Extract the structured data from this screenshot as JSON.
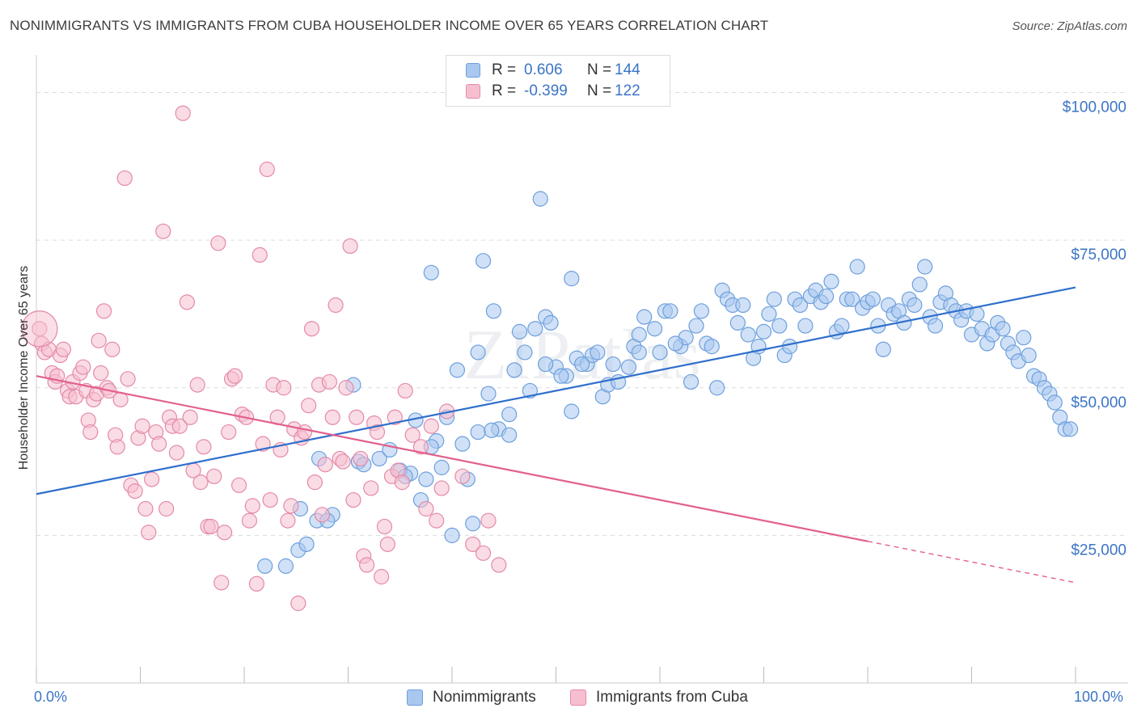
{
  "title": "NONIMMIGRANTS VS IMMIGRANTS FROM CUBA HOUSEHOLDER INCOME OVER 65 YEARS CORRELATION CHART",
  "source": "Source: ZipAtlas.com",
  "watermark": "ZIPatlas",
  "legend_top": [
    {
      "r_label": "R =",
      "r_value": "0.606",
      "n_label": "N =",
      "n_value": "144",
      "color": "#a9c8f0",
      "border": "#6d9fdc"
    },
    {
      "r_label": "R =",
      "r_value": "-0.399",
      "n_label": "N =",
      "n_value": "122",
      "color": "#f6bfd0",
      "border": "#e48aa8"
    }
  ],
  "chart_data": {
    "type": "scatter",
    "xlabel": "",
    "ylabel": "Householder Income Over 65 years",
    "xlim": [
      0,
      100
    ],
    "ylim": [
      0,
      105000
    ],
    "x_tick_labels": [
      "0.0%",
      "100.0%"
    ],
    "y_ticks": [
      25000,
      50000,
      75000,
      100000
    ],
    "y_tick_labels": [
      "$25,000",
      "$50,000",
      "$75,000",
      "$100,000"
    ],
    "grid": "horizontal dashed",
    "legend": "bottom",
    "series": [
      {
        "name": "Nonimmigrants",
        "color": "#6d9fdc",
        "fill": "#a9c8f0",
        "trend": {
          "x": [
            0,
            100
          ],
          "y": [
            32000,
            67000
          ],
          "color": "#2f6fcc"
        },
        "points": [
          [
            22.0,
            19800
          ],
          [
            24.0,
            19800
          ],
          [
            25.2,
            22500
          ],
          [
            26.0,
            23500
          ],
          [
            25.4,
            29500
          ],
          [
            27.0,
            27500
          ],
          [
            28.5,
            28500
          ],
          [
            28.0,
            27500
          ],
          [
            27.2,
            38000
          ],
          [
            30.5,
            50500
          ],
          [
            31.0,
            37500
          ],
          [
            31.5,
            37000
          ],
          [
            33.0,
            38000
          ],
          [
            34.0,
            39500
          ],
          [
            35.0,
            36000
          ],
          [
            36.0,
            35500
          ],
          [
            35.5,
            35000
          ],
          [
            37.0,
            31000
          ],
          [
            37.5,
            34500
          ],
          [
            36.5,
            44500
          ],
          [
            38.5,
            41000
          ],
          [
            39.5,
            45000
          ],
          [
            39.0,
            36500
          ],
          [
            38.0,
            40000
          ],
          [
            40.0,
            25000
          ],
          [
            42.0,
            27000
          ],
          [
            41.5,
            34500
          ],
          [
            42.5,
            42500
          ],
          [
            43.5,
            49000
          ],
          [
            44.5,
            43000
          ],
          [
            45.5,
            42000
          ],
          [
            46.0,
            53000
          ],
          [
            47.0,
            56000
          ],
          [
            48.0,
            60000
          ],
          [
            49.0,
            62000
          ],
          [
            49.5,
            61000
          ],
          [
            50.0,
            53500
          ],
          [
            51.0,
            52000
          ],
          [
            51.5,
            46000
          ],
          [
            52.0,
            55000
          ],
          [
            53.0,
            54000
          ],
          [
            53.5,
            55500
          ],
          [
            54.0,
            56000
          ],
          [
            54.5,
            48500
          ],
          [
            55.0,
            50500
          ],
          [
            55.5,
            54000
          ],
          [
            56.0,
            51000
          ],
          [
            57.0,
            53500
          ],
          [
            57.5,
            57000
          ],
          [
            58.0,
            59000
          ],
          [
            58.5,
            62000
          ],
          [
            59.5,
            60000
          ],
          [
            60.0,
            56000
          ],
          [
            60.5,
            63000
          ],
          [
            61.0,
            63000
          ],
          [
            62.0,
            57000
          ],
          [
            62.5,
            58500
          ],
          [
            63.0,
            51000
          ],
          [
            63.5,
            60500
          ],
          [
            64.0,
            63000
          ],
          [
            64.5,
            57500
          ],
          [
            65.0,
            57000
          ],
          [
            65.5,
            50000
          ],
          [
            66.0,
            66500
          ],
          [
            66.5,
            65000
          ],
          [
            67.0,
            64000
          ],
          [
            67.5,
            61000
          ],
          [
            68.0,
            64000
          ],
          [
            68.5,
            59000
          ],
          [
            69.0,
            55000
          ],
          [
            69.5,
            57000
          ],
          [
            70.0,
            59500
          ],
          [
            70.5,
            62500
          ],
          [
            71.0,
            65000
          ],
          [
            71.5,
            60500
          ],
          [
            72.0,
            55500
          ],
          [
            72.5,
            57000
          ],
          [
            73.0,
            65000
          ],
          [
            73.5,
            64000
          ],
          [
            74.0,
            60500
          ],
          [
            74.5,
            65500
          ],
          [
            75.0,
            66500
          ],
          [
            75.5,
            64500
          ],
          [
            76.0,
            65500
          ],
          [
            76.5,
            68000
          ],
          [
            77.0,
            59500
          ],
          [
            77.5,
            60500
          ],
          [
            78.0,
            65000
          ],
          [
            78.5,
            65000
          ],
          [
            79.0,
            70500
          ],
          [
            79.5,
            63500
          ],
          [
            80.0,
            64500
          ],
          [
            80.5,
            65000
          ],
          [
            81.0,
            60500
          ],
          [
            81.5,
            56500
          ],
          [
            82.0,
            64000
          ],
          [
            82.5,
            62500
          ],
          [
            83.0,
            63000
          ],
          [
            83.5,
            61000
          ],
          [
            84.0,
            65000
          ],
          [
            84.5,
            64000
          ],
          [
            85.0,
            67500
          ],
          [
            85.5,
            70500
          ],
          [
            86.0,
            62000
          ],
          [
            86.5,
            60500
          ],
          [
            87.0,
            64500
          ],
          [
            87.5,
            66000
          ],
          [
            88.0,
            64000
          ],
          [
            88.5,
            63000
          ],
          [
            89.0,
            61500
          ],
          [
            89.5,
            63000
          ],
          [
            90.0,
            59000
          ],
          [
            90.5,
            62500
          ],
          [
            91.0,
            60000
          ],
          [
            91.5,
            57500
          ],
          [
            92.0,
            59000
          ],
          [
            92.5,
            61000
          ],
          [
            93.0,
            60000
          ],
          [
            93.5,
            57500
          ],
          [
            94.0,
            56000
          ],
          [
            94.5,
            54500
          ],
          [
            95.0,
            58500
          ],
          [
            95.5,
            55500
          ],
          [
            96.0,
            52000
          ],
          [
            96.5,
            51500
          ],
          [
            97.0,
            50000
          ],
          [
            97.5,
            49000
          ],
          [
            98.0,
            47500
          ],
          [
            98.5,
            45000
          ],
          [
            99.0,
            43000
          ],
          [
            99.5,
            43000
          ],
          [
            42.5,
            56000
          ],
          [
            43.8,
            42800
          ],
          [
            46.5,
            59500
          ],
          [
            47.5,
            49500
          ],
          [
            48.5,
            82000
          ],
          [
            43.0,
            71500
          ],
          [
            38.0,
            69500
          ],
          [
            51.5,
            68500
          ],
          [
            44.0,
            63000
          ],
          [
            40.5,
            53000
          ],
          [
            41.0,
            40500
          ],
          [
            45.5,
            45500
          ],
          [
            52.5,
            54000
          ],
          [
            58.0,
            56000
          ],
          [
            61.5,
            57500
          ],
          [
            50.5,
            52000
          ],
          [
            49.0,
            54000
          ]
        ]
      },
      {
        "name": "Immigrants from Cuba",
        "color": "#e48aa8",
        "fill": "#f6bfd0",
        "trend": {
          "x": [
            0,
            80
          ],
          "y": [
            52000,
            24000
          ],
          "x_dash_end": 100,
          "y_dash_end": 17000,
          "color": "#e2608c"
        },
        "points": [
          [
            0.3,
            60000
          ],
          [
            0.5,
            57500
          ],
          [
            0.8,
            56000
          ],
          [
            1.2,
            56500
          ],
          [
            1.5,
            52500
          ],
          [
            1.8,
            51000
          ],
          [
            2.0,
            52000
          ],
          [
            2.3,
            55500
          ],
          [
            2.6,
            56500
          ],
          [
            3.0,
            49500
          ],
          [
            3.2,
            48500
          ],
          [
            3.5,
            51000
          ],
          [
            3.8,
            48500
          ],
          [
            4.2,
            52500
          ],
          [
            4.5,
            53500
          ],
          [
            4.8,
            49500
          ],
          [
            5.0,
            44500
          ],
          [
            5.2,
            42500
          ],
          [
            5.5,
            48000
          ],
          [
            5.8,
            49000
          ],
          [
            6.0,
            58000
          ],
          [
            6.2,
            52500
          ],
          [
            6.5,
            63000
          ],
          [
            6.8,
            50000
          ],
          [
            7.0,
            49500
          ],
          [
            7.3,
            56500
          ],
          [
            7.6,
            42000
          ],
          [
            7.8,
            40000
          ],
          [
            8.1,
            48000
          ],
          [
            8.5,
            85500
          ],
          [
            8.8,
            51500
          ],
          [
            9.1,
            33500
          ],
          [
            9.5,
            32500
          ],
          [
            9.8,
            41500
          ],
          [
            10.2,
            43500
          ],
          [
            10.5,
            29500
          ],
          [
            10.8,
            25500
          ],
          [
            11.1,
            34500
          ],
          [
            11.5,
            42500
          ],
          [
            11.8,
            40500
          ],
          [
            12.2,
            76500
          ],
          [
            12.5,
            29500
          ],
          [
            12.8,
            45000
          ],
          [
            13.1,
            43500
          ],
          [
            13.5,
            39000
          ],
          [
            13.8,
            43500
          ],
          [
            14.1,
            96500
          ],
          [
            14.5,
            64500
          ],
          [
            14.8,
            45000
          ],
          [
            15.1,
            36000
          ],
          [
            15.5,
            50500
          ],
          [
            15.8,
            34000
          ],
          [
            16.1,
            40000
          ],
          [
            16.5,
            26500
          ],
          [
            16.8,
            26500
          ],
          [
            17.1,
            35000
          ],
          [
            17.5,
            74500
          ],
          [
            17.8,
            17000
          ],
          [
            18.1,
            25500
          ],
          [
            18.5,
            42500
          ],
          [
            18.8,
            51500
          ],
          [
            19.1,
            52000
          ],
          [
            19.5,
            33500
          ],
          [
            19.8,
            45500
          ],
          [
            20.2,
            45000
          ],
          [
            20.5,
            27500
          ],
          [
            20.8,
            30000
          ],
          [
            21.2,
            16800
          ],
          [
            21.5,
            72500
          ],
          [
            21.8,
            40500
          ],
          [
            22.2,
            87000
          ],
          [
            22.5,
            31000
          ],
          [
            22.8,
            50500
          ],
          [
            23.2,
            45000
          ],
          [
            23.5,
            39500
          ],
          [
            23.8,
            50000
          ],
          [
            24.2,
            27500
          ],
          [
            24.5,
            30000
          ],
          [
            24.8,
            43000
          ],
          [
            25.2,
            13500
          ],
          [
            25.5,
            41500
          ],
          [
            25.8,
            42500
          ],
          [
            26.2,
            47000
          ],
          [
            26.5,
            60000
          ],
          [
            26.8,
            34000
          ],
          [
            27.2,
            50500
          ],
          [
            27.5,
            28500
          ],
          [
            27.8,
            37000
          ],
          [
            28.2,
            51000
          ],
          [
            28.5,
            45000
          ],
          [
            28.8,
            64000
          ],
          [
            29.2,
            38000
          ],
          [
            29.5,
            37500
          ],
          [
            29.8,
            50000
          ],
          [
            30.2,
            74000
          ],
          [
            30.5,
            31000
          ],
          [
            30.8,
            45000
          ],
          [
            31.2,
            38000
          ],
          [
            31.5,
            21500
          ],
          [
            31.8,
            20000
          ],
          [
            32.2,
            33000
          ],
          [
            32.5,
            44000
          ],
          [
            32.8,
            42500
          ],
          [
            33.2,
            18000
          ],
          [
            33.5,
            26500
          ],
          [
            33.8,
            23500
          ],
          [
            34.2,
            35000
          ],
          [
            34.5,
            45000
          ],
          [
            34.8,
            36000
          ],
          [
            35.2,
            34000
          ],
          [
            35.5,
            49500
          ],
          [
            36.2,
            42000
          ],
          [
            37.0,
            40000
          ],
          [
            37.5,
            29500
          ],
          [
            38.0,
            43500
          ],
          [
            38.5,
            27500
          ],
          [
            39.0,
            33000
          ],
          [
            39.5,
            46000
          ],
          [
            41.0,
            35000
          ],
          [
            42.0,
            23500
          ],
          [
            43.0,
            22000
          ],
          [
            43.5,
            27500
          ],
          [
            44.5,
            20000
          ]
        ]
      }
    ]
  }
}
